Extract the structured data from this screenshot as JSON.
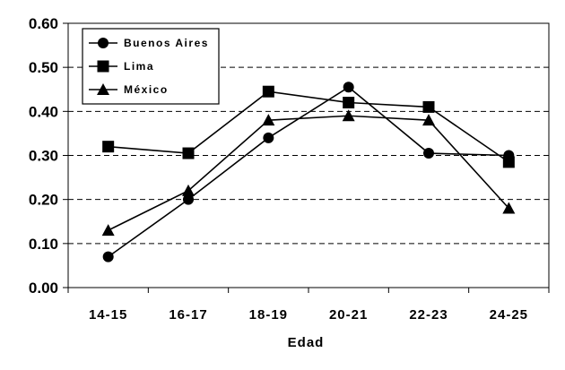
{
  "chart_data": {
    "type": "line",
    "title": "",
    "xlabel": "Edad",
    "ylabel": "",
    "categories": [
      "14-15",
      "16-17",
      "18-19",
      "20-21",
      "22-23",
      "24-25"
    ],
    "ylim": [
      0,
      0.6
    ],
    "yticks": [
      "0.00",
      "0.10",
      "0.20",
      "0.30",
      "0.40",
      "0.50",
      "0.60"
    ],
    "grid": "horizontal-dashed",
    "legend_position": "top-left",
    "series": [
      {
        "name": "Buenos Aires",
        "marker": "circle",
        "values": [
          0.07,
          0.2,
          0.34,
          0.455,
          0.305,
          0.3
        ]
      },
      {
        "name": "Lima",
        "marker": "square",
        "values": [
          0.32,
          0.305,
          0.445,
          0.42,
          0.41,
          0.285
        ]
      },
      {
        "name": "México",
        "marker": "triangle",
        "values": [
          0.13,
          0.22,
          0.38,
          0.39,
          0.38,
          0.18
        ]
      }
    ],
    "colors": {
      "line": "#000000",
      "marker": "#000000",
      "grid": "#000000"
    }
  }
}
